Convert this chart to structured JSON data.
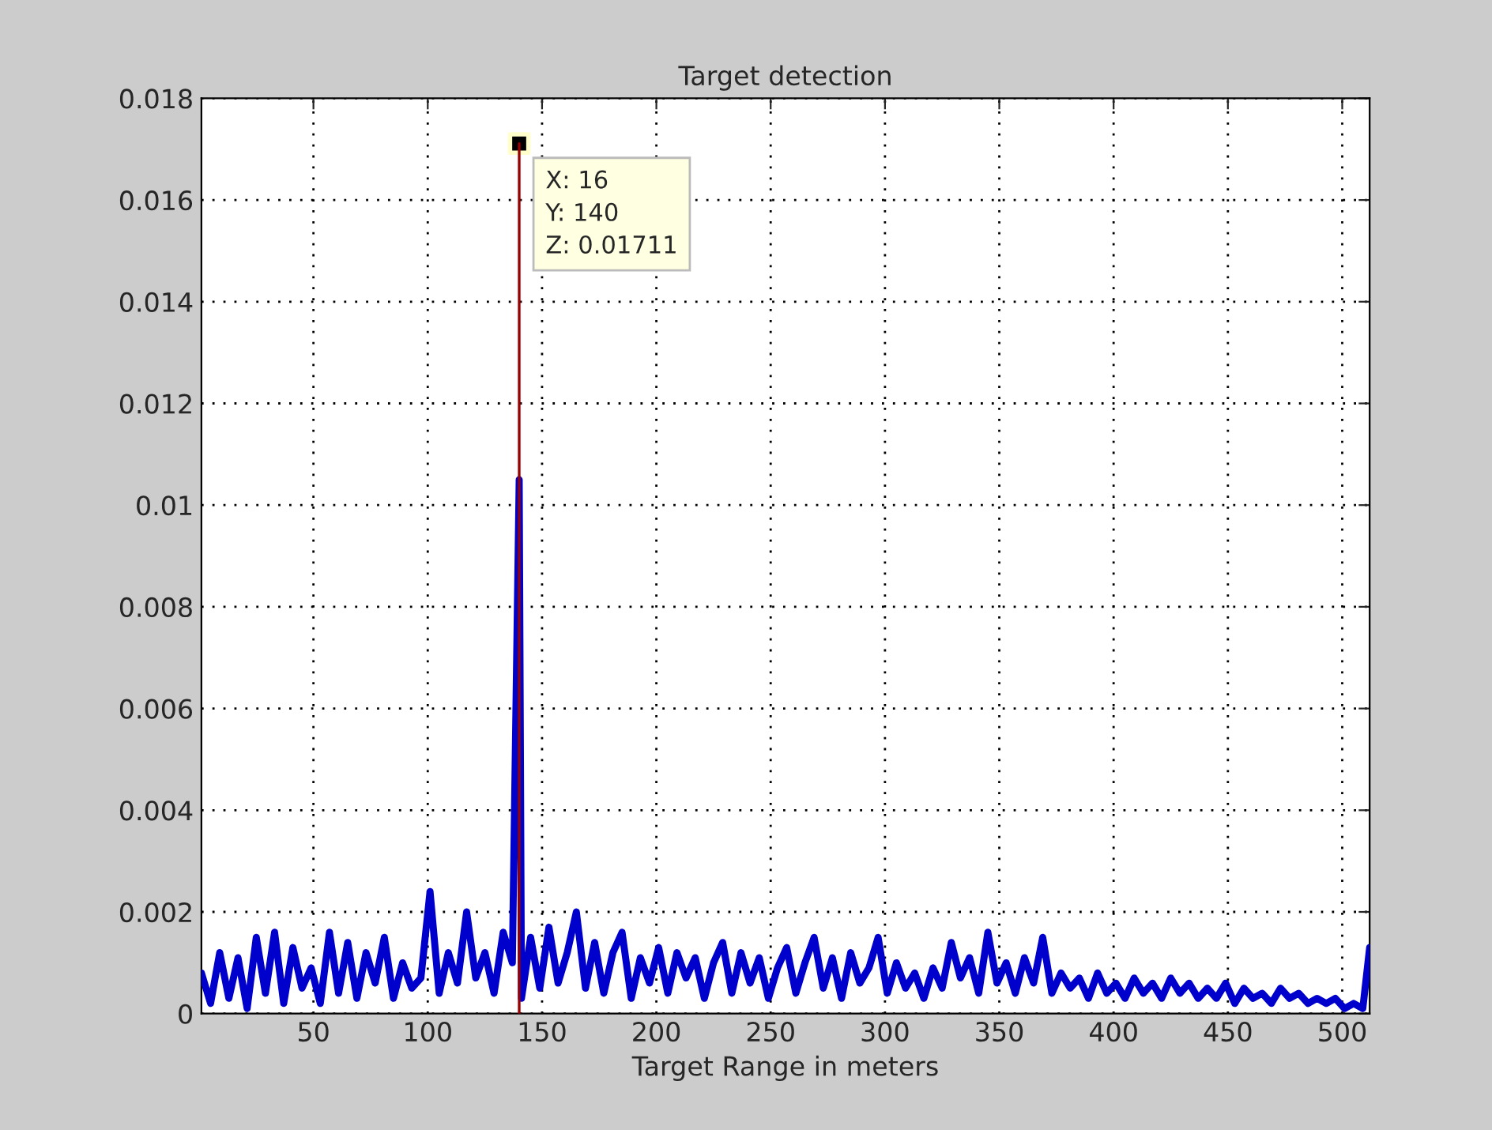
{
  "chart_data": {
    "type": "line",
    "title": "Target detection",
    "xlabel": "Target Range in meters",
    "xlim": [
      1,
      512
    ],
    "xticks": [
      50,
      100,
      150,
      200,
      250,
      300,
      350,
      400,
      450,
      500
    ],
    "ylim": [
      0,
      0.018
    ],
    "yticks": [
      0,
      0.002,
      0.004,
      0.006,
      0.008,
      0.01,
      0.012,
      0.014,
      0.016,
      0.018
    ],
    "grid": true,
    "line_style": "solid",
    "series": [
      {
        "color": "#0000cc",
        "x": [
          1,
          5,
          9,
          13,
          17,
          21,
          25,
          29,
          33,
          37,
          41,
          45,
          49,
          53,
          57,
          61,
          65,
          69,
          73,
          77,
          81,
          85,
          89,
          93,
          97,
          101,
          105,
          109,
          113,
          117,
          121,
          125,
          129,
          133,
          137,
          140,
          141,
          145,
          149,
          153,
          157,
          161,
          165,
          169,
          173,
          177,
          181,
          185,
          189,
          193,
          197,
          201,
          205,
          209,
          213,
          217,
          221,
          225,
          229,
          233,
          237,
          241,
          245,
          249,
          253,
          257,
          261,
          265,
          269,
          273,
          277,
          281,
          285,
          289,
          293,
          297,
          301,
          305,
          309,
          313,
          317,
          321,
          325,
          329,
          333,
          337,
          341,
          345,
          349,
          353,
          357,
          361,
          365,
          369,
          373,
          377,
          381,
          385,
          389,
          393,
          397,
          401,
          405,
          409,
          413,
          417,
          421,
          425,
          429,
          433,
          437,
          441,
          445,
          449,
          453,
          457,
          461,
          465,
          469,
          473,
          477,
          481,
          485,
          489,
          493,
          497,
          501,
          505,
          509,
          512
        ],
        "values": [
          0.0008,
          0.0002,
          0.0012,
          0.0003,
          0.0011,
          0.0001,
          0.0015,
          0.0004,
          0.0016,
          0.0002,
          0.0013,
          0.0005,
          0.0009,
          0.0002,
          0.0016,
          0.0004,
          0.0014,
          0.0003,
          0.0012,
          0.0006,
          0.0015,
          0.0003,
          0.001,
          0.0005,
          0.0007,
          0.0024,
          0.0004,
          0.0012,
          0.0006,
          0.002,
          0.0007,
          0.0012,
          0.0004,
          0.0016,
          0.001,
          0.0105,
          0.0003,
          0.0015,
          0.0005,
          0.0017,
          0.0006,
          0.0012,
          0.002,
          0.0005,
          0.0014,
          0.0004,
          0.0012,
          0.0016,
          0.0003,
          0.0011,
          0.0006,
          0.0013,
          0.0004,
          0.0012,
          0.0007,
          0.0011,
          0.0003,
          0.001,
          0.0014,
          0.0004,
          0.0012,
          0.0006,
          0.0011,
          0.0003,
          0.0009,
          0.0013,
          0.0004,
          0.001,
          0.0015,
          0.0005,
          0.0011,
          0.0003,
          0.0012,
          0.0006,
          0.0009,
          0.0015,
          0.0004,
          0.001,
          0.0005,
          0.0008,
          0.0003,
          0.0009,
          0.0005,
          0.0014,
          0.0007,
          0.0011,
          0.0004,
          0.0016,
          0.0006,
          0.001,
          0.0004,
          0.0011,
          0.0006,
          0.0015,
          0.0004,
          0.0008,
          0.0005,
          0.0007,
          0.0003,
          0.0008,
          0.0004,
          0.0006,
          0.0003,
          0.0007,
          0.0004,
          0.0006,
          0.0003,
          0.0007,
          0.0004,
          0.0006,
          0.0003,
          0.0005,
          0.0003,
          0.0006,
          0.0002,
          0.0005,
          0.0003,
          0.0004,
          0.0002,
          0.0005,
          0.0003,
          0.0004,
          0.0002,
          0.0003,
          0.0002,
          0.0003,
          0.0001,
          0.0002,
          0.0001,
          0.0013
        ]
      },
      {
        "color": "#990000",
        "x": [
          140,
          140
        ],
        "values": [
          0,
          0.01711
        ]
      },
      {
        "type": "scatter",
        "color": "#000000",
        "marker": "square",
        "x": [
          140
        ],
        "values": [
          0.01711
        ]
      }
    ],
    "annotations": [
      {
        "text": "X: 16\nY: 140\nZ: 0.01711",
        "x": 140,
        "y": 0.01711
      }
    ]
  }
}
